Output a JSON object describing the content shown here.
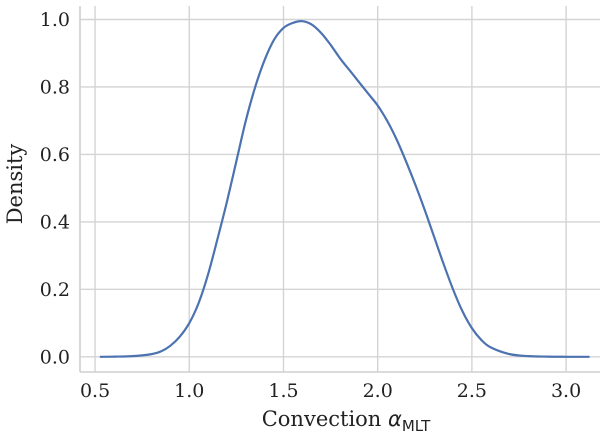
{
  "chart_data": {
    "type": "line",
    "title": "",
    "xlabel": {
      "prefix": "Convection ",
      "symbol": "α",
      "subscript": "MLT"
    },
    "ylabel": "Density",
    "xlim": [
      0.42,
      3.18
    ],
    "ylim": [
      -0.045,
      1.04
    ],
    "xticks": [
      0.5,
      1.0,
      1.5,
      2.0,
      2.5,
      3.0
    ],
    "xtick_labels": [
      "0.5",
      "1.0",
      "1.5",
      "2.0",
      "2.5",
      "3.0"
    ],
    "yticks": [
      0.0,
      0.2,
      0.4,
      0.6,
      0.8,
      1.0
    ],
    "ytick_labels": [
      "0.0",
      "0.2",
      "0.4",
      "0.6",
      "0.8",
      "1.0"
    ],
    "grid": true,
    "legend": "none",
    "series": [
      {
        "color": "#4c72b0",
        "x": [
          0.53,
          0.6,
          0.7,
          0.8,
          0.85,
          0.9,
          0.95,
          1.0,
          1.05,
          1.1,
          1.15,
          1.2,
          1.25,
          1.3,
          1.35,
          1.4,
          1.45,
          1.5,
          1.55,
          1.6,
          1.65,
          1.7,
          1.75,
          1.8,
          1.85,
          1.9,
          1.95,
          2.0,
          2.05,
          2.1,
          2.15,
          2.2,
          2.25,
          2.3,
          2.35,
          2.4,
          2.45,
          2.5,
          2.55,
          2.6,
          2.7,
          2.8,
          2.9,
          3.0,
          3.12
        ],
        "y": [
          0.0,
          0.0005,
          0.002,
          0.008,
          0.016,
          0.033,
          0.06,
          0.1,
          0.16,
          0.245,
          0.35,
          0.46,
          0.58,
          0.7,
          0.8,
          0.88,
          0.94,
          0.975,
          0.99,
          0.995,
          0.985,
          0.96,
          0.925,
          0.885,
          0.85,
          0.815,
          0.78,
          0.745,
          0.7,
          0.645,
          0.58,
          0.51,
          0.435,
          0.355,
          0.275,
          0.2,
          0.135,
          0.085,
          0.05,
          0.028,
          0.008,
          0.002,
          0.0005,
          0.0001,
          0.0
        ]
      }
    ]
  }
}
